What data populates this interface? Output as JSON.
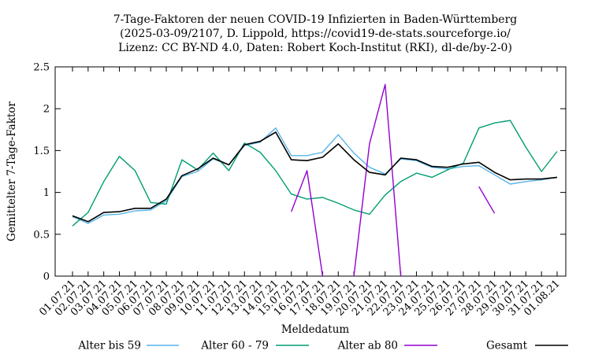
{
  "colors": {
    "alter_bis_59": "#56b4e9",
    "alter_60_79": "#009e73",
    "alter_ab_80": "#9400d3",
    "gesamt": "#000000"
  },
  "chart_data": {
    "type": "line",
    "title": [
      "7-Tage-Faktoren der neuen COVID-19 Infizierten in Baden-Württemberg",
      "(2025-03-09/2107, D. Lippold, https://covid19-de-stats.sourceforge.io/",
      "Lizenz: CC BY-ND 4.0, Daten: Robert Koch-Institut (RKI), dl-de/by-2-0)"
    ],
    "xlabel": "Meldedatum",
    "ylabel": "Gemittelter 7-Tage-Faktor",
    "ylim": [
      0,
      2.5
    ],
    "yticks": [
      "0",
      "0.5",
      "1",
      "1.5",
      "2",
      "2.5"
    ],
    "grid": false,
    "legend_position": "bottom",
    "categories": [
      "01.07.21",
      "02.07.21",
      "03.07.21",
      "04.07.21",
      "05.07.21",
      "06.07.21",
      "07.07.21",
      "08.07.21",
      "09.07.21",
      "10.07.21",
      "11.07.21",
      "12.07.21",
      "13.07.21",
      "14.07.21",
      "15.07.21",
      "16.07.21",
      "17.07.21",
      "18.07.21",
      "19.07.21",
      "20.07.21",
      "21.07.21",
      "22.07.21",
      "23.07.21",
      "24.07.21",
      "25.07.21",
      "26.07.21",
      "27.07.21",
      "28.07.21",
      "29.07.21",
      "30.07.21",
      "31.07.21",
      "01.08.21"
    ],
    "series": [
      {
        "name": "Alter bis 59",
        "color_key": "alter_bis_59",
        "values": [
          0.71,
          0.63,
          0.73,
          0.74,
          0.78,
          0.79,
          0.9,
          1.19,
          1.25,
          1.4,
          1.33,
          1.56,
          1.6,
          1.77,
          1.44,
          1.44,
          1.48,
          1.69,
          1.47,
          1.3,
          1.22,
          1.4,
          1.38,
          1.3,
          1.28,
          1.31,
          1.32,
          1.21,
          1.1,
          1.13,
          1.15,
          1.18
        ]
      },
      {
        "name": "Alter 60 - 79",
        "color_key": "alter_60_79",
        "values": [
          0.6,
          0.76,
          1.13,
          1.43,
          1.26,
          0.88,
          0.86,
          1.39,
          1.27,
          1.47,
          1.26,
          1.59,
          1.48,
          1.26,
          0.98,
          0.92,
          0.94,
          0.87,
          0.79,
          0.74,
          0.97,
          1.13,
          1.23,
          1.18,
          1.27,
          1.35,
          1.77,
          1.83,
          1.86,
          1.54,
          1.25,
          1.49
        ]
      },
      {
        "name": "Alter ab 80",
        "color_key": "alter_ab_80",
        "values": [
          null,
          null,
          null,
          null,
          null,
          null,
          null,
          null,
          null,
          null,
          null,
          null,
          null,
          null,
          0.77,
          1.26,
          0.0,
          null,
          0.0,
          1.58,
          2.29,
          0.0,
          null,
          null,
          null,
          null,
          1.07,
          0.75,
          null,
          null,
          null,
          null
        ]
      },
      {
        "name": "Gesamt",
        "color_key": "gesamt",
        "values": [
          0.72,
          0.65,
          0.76,
          0.77,
          0.81,
          0.81,
          0.92,
          1.2,
          1.28,
          1.41,
          1.33,
          1.57,
          1.61,
          1.72,
          1.39,
          1.38,
          1.42,
          1.58,
          1.39,
          1.24,
          1.21,
          1.41,
          1.39,
          1.31,
          1.3,
          1.34,
          1.36,
          1.24,
          1.15,
          1.16,
          1.16,
          1.18
        ]
      }
    ]
  }
}
